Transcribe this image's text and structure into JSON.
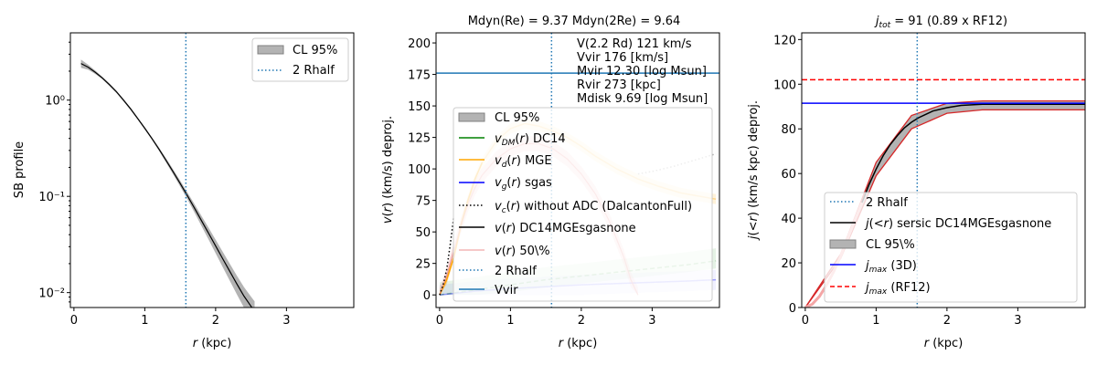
{
  "chart_data": [
    {
      "type": "line",
      "panel": "left",
      "xlabel": "r (kpc)",
      "ylabel": "SB profile",
      "yscale": "log",
      "xlim": [
        -0.05,
        3.95
      ],
      "ylim": [
        0.007,
        5.0
      ],
      "xticks": [
        "0",
        "1",
        "2",
        "3"
      ],
      "yticks": [
        "10⁻²",
        "10⁻¹",
        "10⁰"
      ],
      "series": [
        {
          "name": "SB profile",
          "x": [
            0.1,
            0.2,
            0.3,
            0.4,
            0.5,
            0.6,
            0.7,
            0.8,
            0.9,
            1.0,
            1.1,
            1.2,
            1.3,
            1.4,
            1.5,
            1.6,
            1.7,
            1.8,
            1.9,
            2.0,
            2.1,
            2.2,
            2.3,
            2.4,
            2.5,
            2.55
          ],
          "y": [
            2.4,
            2.2,
            1.95,
            1.7,
            1.45,
            1.22,
            1.0,
            0.81,
            0.645,
            0.51,
            0.4,
            0.31,
            0.237,
            0.18,
            0.136,
            0.102,
            0.076,
            0.056,
            0.0415,
            0.0305,
            0.0225,
            0.0166,
            0.0123,
            0.0092,
            0.0072,
            0.0064
          ]
        }
      ],
      "band_rel_width": [
        0.1,
        0.06,
        0.04,
        0.03,
        0.03,
        0.03,
        0.03,
        0.03,
        0.03,
        0.03,
        0.03,
        0.04,
        0.05,
        0.06,
        0.07,
        0.08,
        0.1,
        0.12,
        0.14,
        0.16,
        0.18,
        0.2,
        0.22,
        0.24,
        0.26,
        0.27
      ],
      "rhalf2": 1.58,
      "legend": [
        {
          "label": "CL 95%",
          "style": "band",
          "color": "#808080"
        },
        {
          "label": "2 Rhalf",
          "style": "dotted",
          "color": "#1f77b4"
        }
      ]
    },
    {
      "type": "line",
      "panel": "middle",
      "title": "Mdyn(Re) = 9.37  Mdyn(2Re) = 9.64",
      "xlabel": "r (kpc)",
      "ylabel": "v(r) (km/s) deproj.",
      "xlim": [
        -0.05,
        3.95
      ],
      "ylim": [
        -10,
        208
      ],
      "xticks": [
        "0",
        "1",
        "2",
        "3"
      ],
      "yticks": [
        "0",
        "25",
        "50",
        "75",
        "100",
        "125",
        "150",
        "175",
        "200"
      ],
      "annotations": [
        "V(2.2 Rd) 121 km/s",
        "Vvir 176 [km/s]",
        "Mvir 12.30 [log Msun]",
        "Rvir 273 [kpc]",
        "Mdisk 9.69 [log Msun]"
      ],
      "vvir": 176,
      "rhalf2": 1.58,
      "series": [
        {
          "name": "v_DM(r) DC14",
          "color": "#008000",
          "x": [
            0,
            0.5,
            1,
            1.5,
            2,
            2.5,
            3,
            3.5,
            3.9
          ],
          "y": [
            0,
            4,
            8,
            12,
            15,
            18,
            21,
            24,
            27
          ]
        },
        {
          "name": "v_d(r) MGE",
          "color": "#ffa500",
          "x": [
            0,
            0.1,
            0.2,
            0.3,
            0.4,
            0.5,
            0.6,
            0.8,
            1.0,
            1.2,
            1.4,
            1.6,
            1.8,
            2.0,
            2.2,
            2.5,
            2.8,
            3.1,
            3.4,
            3.7,
            3.9
          ],
          "y": [
            0,
            12,
            30,
            55,
            75,
            92,
            105,
            122,
            132,
            136,
            134,
            130,
            125,
            118,
            110,
            100,
            92,
            86,
            81,
            78,
            76
          ]
        },
        {
          "name": "v_g(r) sgas",
          "color": "#0000ff",
          "x": [
            0,
            0.5,
            1,
            1.5,
            2,
            2.5,
            3,
            3.5,
            3.9
          ],
          "y": [
            0,
            3,
            5,
            6.5,
            8,
            9,
            10,
            11,
            12
          ]
        },
        {
          "name": "v_c(r) without ADC",
          "color": "#000000",
          "x": [
            0,
            0.05,
            0.1,
            0.15,
            0.2
          ],
          "y": [
            0,
            8,
            20,
            40,
            62
          ]
        },
        {
          "name": "v_c grey",
          "color": "#aaaaaa",
          "x": [
            2.8,
            3.0,
            3.3,
            3.6,
            3.9
          ],
          "y": [
            96,
            98,
            102,
            107,
            112
          ]
        },
        {
          "name": "v(r) 50\\%",
          "color": "#e8a0a0",
          "x": [
            0,
            0.1,
            0.2,
            0.3,
            0.4,
            0.5,
            0.6,
            0.8,
            1.0,
            1.2,
            1.4,
            1.6,
            1.8,
            2.0,
            2.2,
            2.4,
            2.6,
            2.7,
            2.8
          ],
          "y": [
            0,
            15,
            35,
            55,
            72,
            85,
            95,
            108,
            116,
            120,
            120,
            116,
            108,
            96,
            80,
            58,
            30,
            12,
            0
          ]
        }
      ],
      "legend": [
        {
          "label": "CL 95%",
          "style": "band",
          "color": "#808080"
        },
        {
          "label": "v_DM(r) DC14",
          "style": "solid",
          "color": "#008000"
        },
        {
          "label": "v_d(r) MGE",
          "style": "solid",
          "color": "#ffa500"
        },
        {
          "label": "v_g(r) sgas",
          "style": "solid",
          "color": "#0000ff"
        },
        {
          "label": "v_c(r) without ADC (DalcantonFull)",
          "style": "dotted",
          "color": "#000000"
        },
        {
          "label": "v(r) DC14MGEsgasnone",
          "style": "solid",
          "color": "#000000"
        },
        {
          "label": "v(r) 50\\%",
          "style": "solid",
          "color": "#f4b6b6"
        },
        {
          "label": "2 Rhalf",
          "style": "dotted",
          "color": "#1f77b4"
        },
        {
          "label": "Vvir",
          "style": "solid",
          "color": "#1f77b4"
        }
      ]
    },
    {
      "type": "line",
      "panel": "right",
      "title": "j_tot = 91 (0.89 x RF12)",
      "xlabel": "r (kpc)",
      "ylabel": "j(<r) (km/s kpc) deproj.",
      "xlim": [
        -0.05,
        3.95
      ],
      "ylim": [
        0,
        123
      ],
      "xticks": [
        "0",
        "1",
        "2",
        "3"
      ],
      "yticks": [
        "0",
        "20",
        "40",
        "60",
        "80",
        "100",
        "120"
      ],
      "jmax3d": 91.5,
      "jmaxRF12": 102,
      "rhalf2": 1.58,
      "series": [
        {
          "name": "j(<r) sersic DC14MGEsgasnone",
          "x": [
            0,
            0.1,
            0.2,
            0.3,
            0.4,
            0.5,
            0.6,
            0.7,
            0.8,
            0.9,
            1.0,
            1.1,
            1.2,
            1.3,
            1.4,
            1.5,
            1.6,
            1.8,
            2.0,
            2.2,
            2.5,
            3.0,
            3.5,
            3.95
          ],
          "y": [
            0,
            1.5,
            5,
            10,
            16,
            23,
            31,
            39,
            47,
            55,
            62,
            68,
            73,
            77,
            80.5,
            83,
            85,
            88,
            89.5,
            90.5,
            91,
            91,
            91,
            91
          ]
        },
        {
          "name": "upper",
          "x": [
            0,
            0.5,
            1.0,
            1.5,
            2.0,
            2.5,
            3.0,
            3.5,
            3.95
          ],
          "y": [
            0,
            24,
            65,
            86,
            91.5,
            92.5,
            92.5,
            92.5,
            92.5
          ]
        },
        {
          "name": "lower",
          "x": [
            0,
            0.5,
            1.0,
            1.5,
            2.0,
            2.5,
            3.0,
            3.5,
            3.95
          ],
          "y": [
            0,
            22,
            59,
            80,
            87,
            88.5,
            88.5,
            88.5,
            88.5
          ]
        }
      ],
      "legend": [
        {
          "label": "2 Rhalf",
          "style": "dotted",
          "color": "#1f77b4"
        },
        {
          "label": "j(<r) sersic DC14MGEsgasnone",
          "style": "solid",
          "color": "#000000"
        },
        {
          "label": "CL 95\\%",
          "style": "band",
          "color": "#808080"
        },
        {
          "label": "j_max (3D)",
          "style": "solid",
          "color": "#0000ff"
        },
        {
          "label": "j_max (RF12)",
          "style": "dashed",
          "color": "#ff0000"
        }
      ]
    }
  ]
}
